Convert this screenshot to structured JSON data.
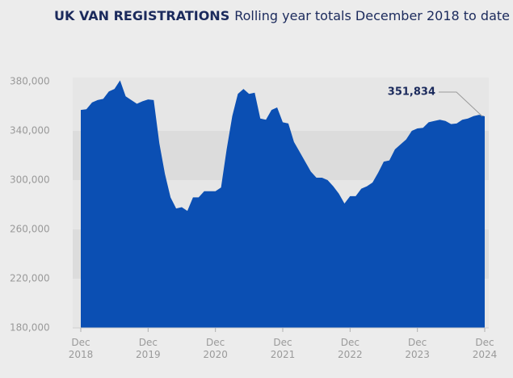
{
  "chart_data": {
    "type": "area",
    "title": "UK VAN REGISTRATIONS",
    "subtitle": "Rolling year totals December 2018 to date",
    "categories": [
      "Dec 2018",
      null,
      null,
      null,
      null,
      null,
      null,
      null,
      null,
      null,
      null,
      null,
      "Dec 2019",
      null,
      null,
      null,
      null,
      null,
      null,
      null,
      null,
      null,
      null,
      null,
      "Dec 2020",
      null,
      null,
      null,
      null,
      null,
      null,
      null,
      null,
      null,
      null,
      null,
      "Dec 2021",
      null,
      null,
      null,
      null,
      null,
      null,
      null,
      null,
      null,
      null,
      null,
      "Dec 2022",
      null,
      null,
      null,
      null,
      null,
      null,
      null,
      null,
      null,
      null,
      null,
      "Dec 2023",
      null,
      null,
      null,
      null,
      null,
      null,
      null,
      null,
      null,
      null,
      null,
      "Dec 2024"
    ],
    "values": [
      357000,
      357500,
      363000,
      365000,
      366000,
      372000,
      374000,
      381000,
      368000,
      365000,
      362000,
      364000,
      365500,
      365000,
      330000,
      305000,
      286000,
      277000,
      278000,
      275000,
      286000,
      286000,
      291000,
      291000,
      291000,
      294000,
      325000,
      352000,
      370000,
      374000,
      370000,
      371000,
      350000,
      349000,
      357000,
      359000,
      347000,
      346000,
      331000,
      323000,
      315000,
      307000,
      302000,
      302000,
      300000,
      295000,
      289000,
      281000,
      287000,
      287000,
      293000,
      295000,
      298000,
      306000,
      315000,
      316000,
      325000,
      329000,
      333000,
      340000,
      342000,
      342500,
      347000,
      348000,
      349000,
      348000,
      345500,
      346000,
      349000,
      350000,
      352000,
      353000,
      351834
    ],
    "value_labels": [
      null,
      null,
      null,
      null,
      null,
      null,
      null,
      null,
      null,
      null,
      null,
      null,
      null,
      null,
      null,
      null,
      null,
      null,
      null,
      null,
      null,
      null,
      null,
      null,
      null,
      null,
      null,
      null,
      null,
      null,
      null,
      null,
      null,
      null,
      null,
      null,
      null,
      null,
      null,
      null,
      null,
      null,
      null,
      null,
      null,
      null,
      null,
      null,
      null,
      null,
      null,
      null,
      null,
      null,
      null,
      null,
      null,
      null,
      null,
      null,
      null,
      null,
      null,
      null,
      null,
      null,
      null,
      null,
      null,
      null,
      null,
      null,
      "351,834"
    ],
    "color": "#0b4fb3",
    "ylim": [
      180000,
      380000
    ],
    "yticks": [
      {
        "value": 180000,
        "label": "180,000"
      },
      {
        "value": 220000,
        "label": "220,000"
      },
      {
        "value": 260000,
        "label": "260,000"
      },
      {
        "value": 300000,
        "label": "300,000"
      },
      {
        "value": 340000,
        "label": "340,000"
      },
      {
        "value": 380000,
        "label": "380,000"
      }
    ],
    "grid": "bands"
  }
}
